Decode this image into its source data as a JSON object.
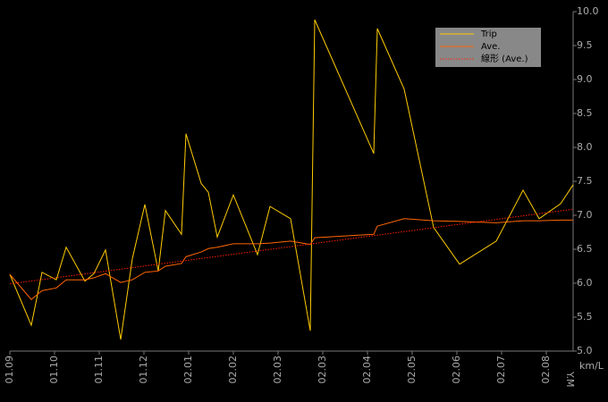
{
  "chart_data": {
    "type": "line",
    "x_label": "Y.M",
    "y_label": "km/L",
    "x": [
      0,
      0.48,
      0.72,
      1.04,
      1.26,
      1.68,
      1.88,
      2.14,
      2.48,
      2.74,
      3.02,
      3.32,
      3.48,
      3.84,
      3.94,
      4.28,
      4.44,
      4.64,
      5.0,
      5.54,
      5.82,
      6.28,
      6.72,
      6.82,
      8.14,
      8.22,
      8.82,
      9.48,
      10.06,
      10.88,
      11.48,
      11.84,
      12.32,
      12.6
    ],
    "xlim": [
      0,
      12.6
    ],
    "xticks": [
      {
        "value": 0,
        "label": "01.09"
      },
      {
        "value": 1,
        "label": "01.10"
      },
      {
        "value": 2,
        "label": "01.11"
      },
      {
        "value": 3,
        "label": "01.12"
      },
      {
        "value": 4,
        "label": "02.01"
      },
      {
        "value": 5,
        "label": "02.02"
      },
      {
        "value": 6,
        "label": "02.03"
      },
      {
        "value": 7,
        "label": "02.03"
      },
      {
        "value": 8,
        "label": "02.04"
      },
      {
        "value": 9,
        "label": "02.05"
      },
      {
        "value": 10,
        "label": "02.06"
      },
      {
        "value": 11,
        "label": "02.07"
      },
      {
        "value": 12,
        "label": "02.08"
      }
    ],
    "ylim": [
      5,
      10
    ],
    "yticks": [
      {
        "value": 5,
        "label": "5.0"
      },
      {
        "value": 5.5,
        "label": "5.5"
      },
      {
        "value": 6,
        "label": "6.0"
      },
      {
        "value": 6.5,
        "label": "6.5"
      },
      {
        "value": 7,
        "label": "7.0"
      },
      {
        "value": 7.5,
        "label": "7.5"
      },
      {
        "value": 8,
        "label": "8.0"
      },
      {
        "value": 8.5,
        "label": "8.5"
      },
      {
        "value": 9,
        "label": "9.0"
      },
      {
        "value": 9.5,
        "label": "9.5"
      },
      {
        "value": 10,
        "label": "10.0"
      }
    ],
    "series": [
      {
        "name": "Trip",
        "color": "#ffcc00",
        "values": [
          6.13,
          5.38,
          6.16,
          6.05,
          6.53,
          6.03,
          6.14,
          6.49,
          5.17,
          6.36,
          7.16,
          6.18,
          7.07,
          6.72,
          8.2,
          7.47,
          7.34,
          6.68,
          7.3,
          6.42,
          7.13,
          6.95,
          5.3,
          9.88,
          7.91,
          9.75,
          8.86,
          6.82,
          6.28,
          6.62,
          7.37,
          6.95,
          7.17,
          7.45
        ]
      },
      {
        "name": "Ave.",
        "color": "#ff6600",
        "values": [
          6.13,
          5.76,
          5.89,
          5.93,
          6.05,
          6.05,
          6.08,
          6.14,
          6.01,
          6.05,
          6.16,
          6.18,
          6.25,
          6.29,
          6.39,
          6.46,
          6.51,
          6.53,
          6.58,
          6.58,
          6.59,
          6.62,
          6.57,
          6.67,
          6.72,
          6.84,
          6.95,
          6.92,
          6.91,
          6.89,
          6.92,
          6.92,
          6.93,
          6.93
        ]
      },
      {
        "name": "線形 (Ave.)",
        "color": "#ff2200",
        "dashed": true,
        "x": [
          0,
          12.6
        ],
        "values": [
          5.99,
          7.09
        ]
      }
    ]
  }
}
